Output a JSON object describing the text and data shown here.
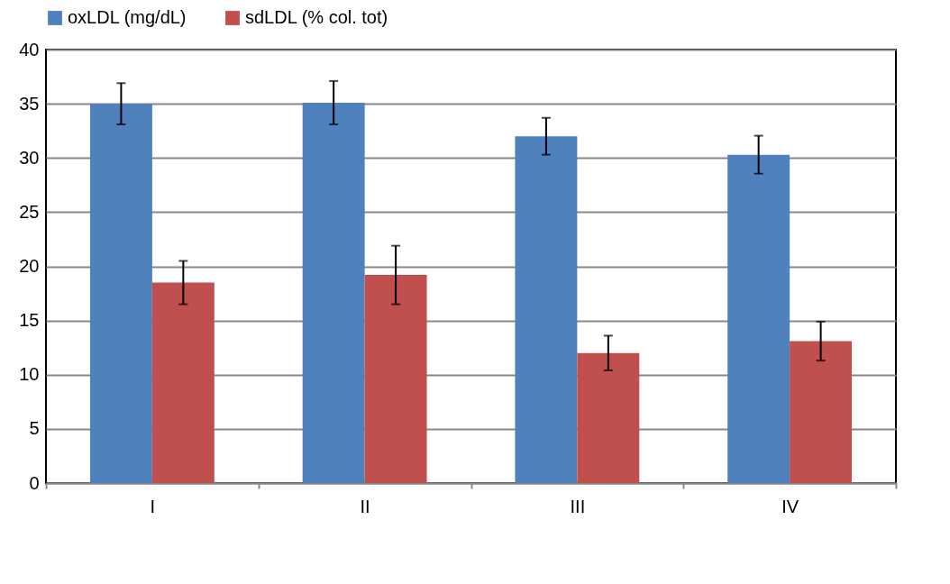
{
  "chart_data": {
    "type": "bar",
    "categories": [
      "I",
      "II",
      "III",
      "IV"
    ],
    "series": [
      {
        "name": "oxLDL (mg/dL)",
        "color": "#4f81bd",
        "values": [
          35.0,
          35.1,
          32.0,
          30.3
        ],
        "errors": [
          1.9,
          2.0,
          1.7,
          1.75
        ]
      },
      {
        "name": "sdLDL (% col. tot)",
        "color": "#c0504d",
        "values": [
          18.5,
          19.2,
          12.0,
          13.1
        ],
        "errors": [
          2.0,
          2.7,
          1.6,
          1.8
        ]
      }
    ],
    "ylim": [
      0,
      40
    ],
    "yticks": [
      0,
      5,
      10,
      15,
      20,
      25,
      30,
      35,
      40
    ],
    "grid": "y",
    "legend": "top"
  }
}
